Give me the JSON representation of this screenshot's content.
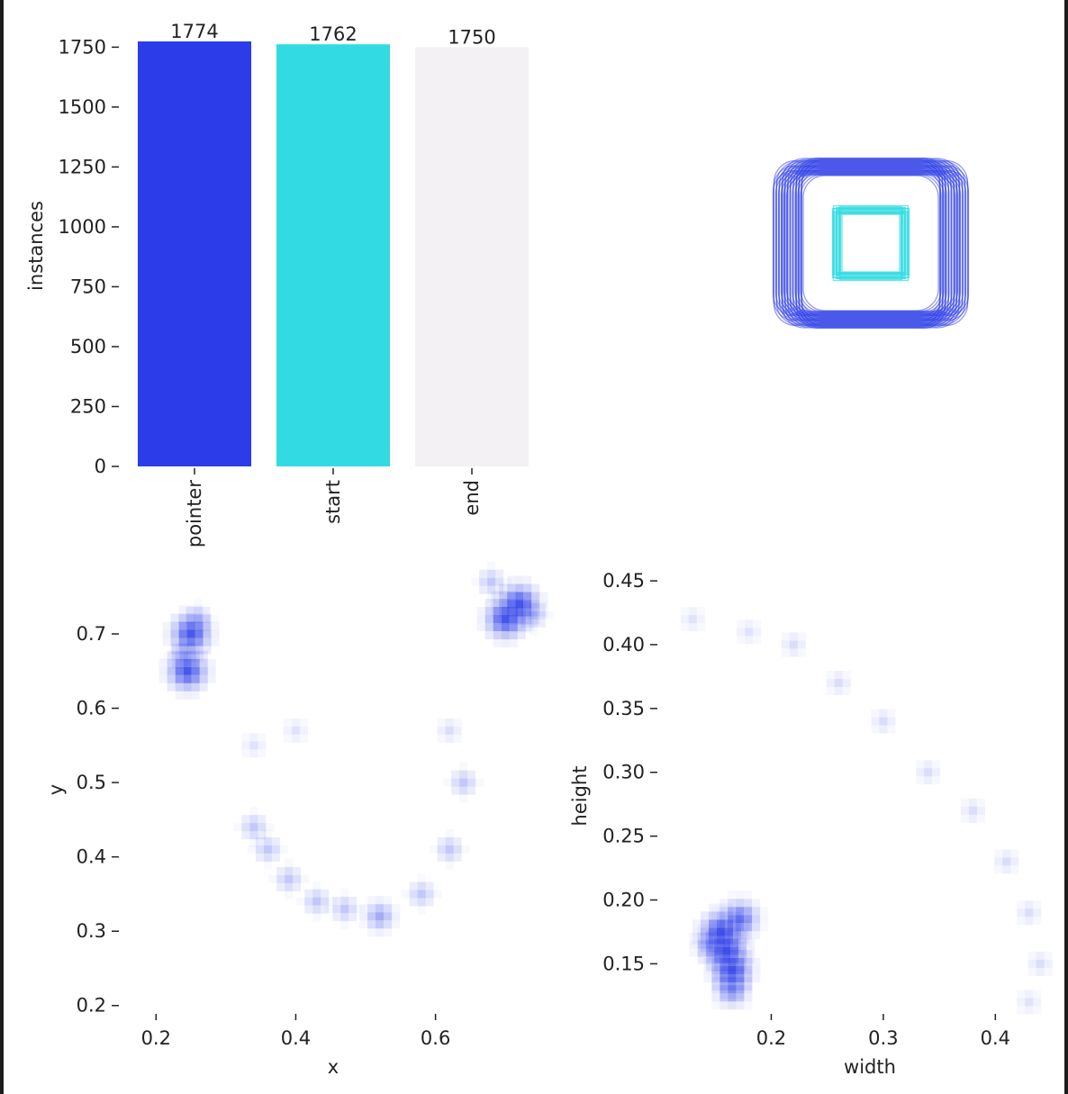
{
  "chart_data": [
    {
      "type": "bar",
      "categories": [
        "pointer",
        "start",
        "end"
      ],
      "values": [
        1774,
        1762,
        1750
      ],
      "data_labels": [
        "1774",
        "1762",
        "1750"
      ],
      "colors": [
        "#2b3ce8",
        "#32dbe3",
        "#f3f1f4"
      ],
      "ylabel": "instances",
      "yticks": [
        "0",
        "250",
        "500",
        "750",
        "1000",
        "1250",
        "1500",
        "1750"
      ],
      "ylim": [
        0,
        1774
      ],
      "grid": false
    },
    {
      "type": "other",
      "description_kind": "overlapping bounding boxes",
      "colors": [
        "#2b3ce8",
        "#32dbe3"
      ]
    },
    {
      "type": "heatmap",
      "xlabel": "x",
      "ylabel": "y",
      "xticks": [
        "0.2",
        "0.4",
        "0.6"
      ],
      "yticks": [
        "0.2",
        "0.3",
        "0.4",
        "0.5",
        "0.6",
        "0.7"
      ],
      "xlim": [
        0.17,
        0.75
      ],
      "ylim": [
        0.19,
        0.78
      ],
      "color": "#2b3ce8",
      "points": [
        {
          "x": 0.25,
          "y": 0.7,
          "w": 3
        },
        {
          "x": 0.245,
          "y": 0.65,
          "w": 3
        },
        {
          "x": 0.24,
          "y": 0.67,
          "w": 1
        },
        {
          "x": 0.26,
          "y": 0.72,
          "w": 1
        },
        {
          "x": 0.72,
          "y": 0.74,
          "w": 3
        },
        {
          "x": 0.7,
          "y": 0.72,
          "w": 3
        },
        {
          "x": 0.68,
          "y": 0.77,
          "w": 1
        },
        {
          "x": 0.74,
          "y": 0.725,
          "w": 1
        },
        {
          "x": 0.34,
          "y": 0.44,
          "w": 1
        },
        {
          "x": 0.36,
          "y": 0.41,
          "w": 1
        },
        {
          "x": 0.39,
          "y": 0.37,
          "w": 1
        },
        {
          "x": 0.43,
          "y": 0.34,
          "w": 1
        },
        {
          "x": 0.47,
          "y": 0.33,
          "w": 1
        },
        {
          "x": 0.52,
          "y": 0.32,
          "w": 1.5
        },
        {
          "x": 0.58,
          "y": 0.35,
          "w": 1
        },
        {
          "x": 0.62,
          "y": 0.41,
          "w": 1
        },
        {
          "x": 0.64,
          "y": 0.5,
          "w": 1
        },
        {
          "x": 0.62,
          "y": 0.57,
          "w": 0.6
        },
        {
          "x": 0.4,
          "y": 0.57,
          "w": 0.5
        },
        {
          "x": 0.34,
          "y": 0.55,
          "w": 0.5
        }
      ]
    },
    {
      "type": "heatmap",
      "xlabel": "width",
      "ylabel": "height",
      "xticks": [
        "0.2",
        "0.3",
        "0.4"
      ],
      "yticks": [
        "0.15",
        "0.20",
        "0.25",
        "0.30",
        "0.35",
        "0.40",
        "0.45"
      ],
      "xlim": [
        0.1,
        0.46
      ],
      "ylim": [
        0.115,
        0.455
      ],
      "color": "#2b3ce8",
      "points": [
        {
          "x": 0.165,
          "y": 0.145,
          "w": 3
        },
        {
          "x": 0.16,
          "y": 0.16,
          "w": 3
        },
        {
          "x": 0.155,
          "y": 0.175,
          "w": 3
        },
        {
          "x": 0.172,
          "y": 0.185,
          "w": 2.5
        },
        {
          "x": 0.165,
          "y": 0.13,
          "w": 2
        },
        {
          "x": 0.145,
          "y": 0.165,
          "w": 1.5
        },
        {
          "x": 0.13,
          "y": 0.42,
          "w": 0.5
        },
        {
          "x": 0.18,
          "y": 0.41,
          "w": 0.5
        },
        {
          "x": 0.22,
          "y": 0.4,
          "w": 0.6
        },
        {
          "x": 0.26,
          "y": 0.37,
          "w": 0.6
        },
        {
          "x": 0.3,
          "y": 0.34,
          "w": 0.6
        },
        {
          "x": 0.34,
          "y": 0.3,
          "w": 0.6
        },
        {
          "x": 0.38,
          "y": 0.27,
          "w": 0.6
        },
        {
          "x": 0.41,
          "y": 0.23,
          "w": 0.6
        },
        {
          "x": 0.43,
          "y": 0.19,
          "w": 0.6
        },
        {
          "x": 0.44,
          "y": 0.15,
          "w": 0.6
        },
        {
          "x": 0.43,
          "y": 0.12,
          "w": 0.5
        }
      ]
    }
  ]
}
